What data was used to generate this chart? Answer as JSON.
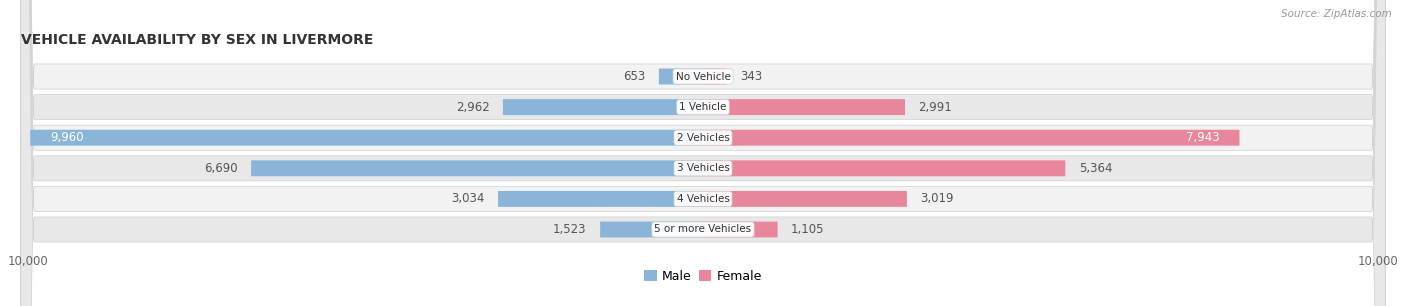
{
  "title": "VEHICLE AVAILABILITY BY SEX IN LIVERMORE",
  "source": "Source: ZipAtlas.com",
  "categories": [
    "No Vehicle",
    "1 Vehicle",
    "2 Vehicles",
    "3 Vehicles",
    "4 Vehicles",
    "5 or more Vehicles"
  ],
  "male_values": [
    653,
    2962,
    9960,
    6690,
    3034,
    1523
  ],
  "female_values": [
    343,
    2991,
    7943,
    5364,
    3019,
    1105
  ],
  "male_color": "#8ab4d8",
  "female_color": "#e8879c",
  "male_color_dark": "#6a9cbf",
  "female_color_dark": "#d4607a",
  "row_bg_light": "#f2f2f2",
  "row_bg_dark": "#e8e8e8",
  "row_border": "#d0d0d0",
  "x_max": 10000,
  "label_dark": "#555555",
  "label_white": "#ffffff",
  "title_color": "#333333",
  "source_color": "#999999",
  "fig_width": 14.06,
  "fig_height": 3.06,
  "dpi": 100
}
